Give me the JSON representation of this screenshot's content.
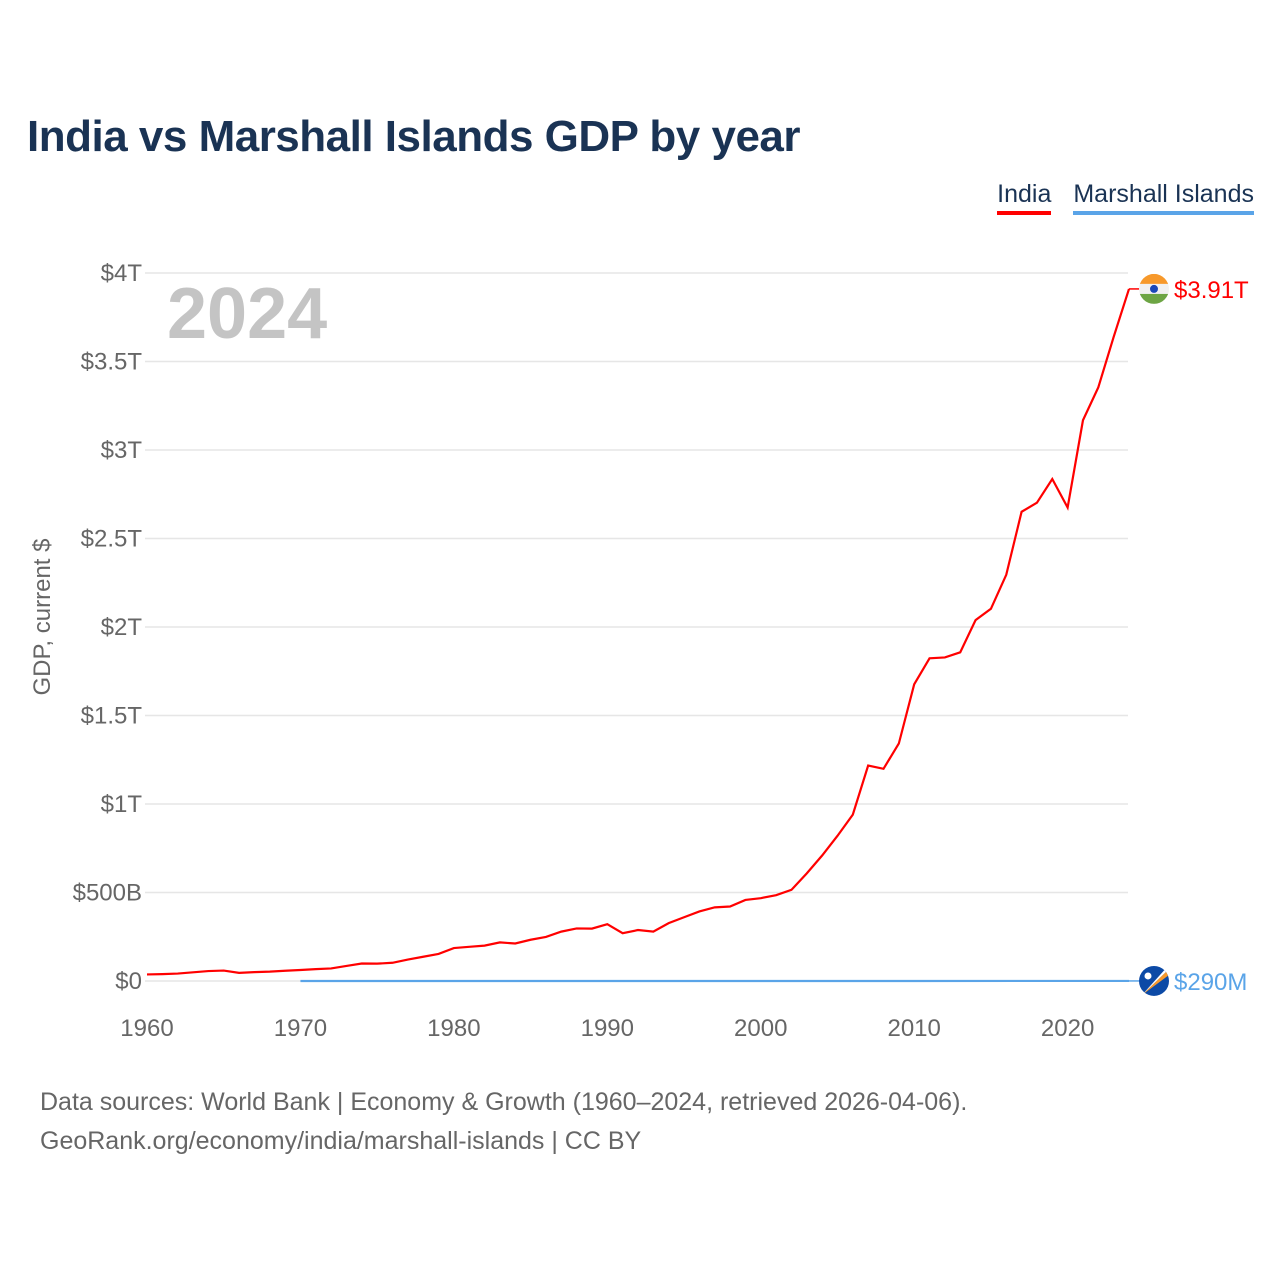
{
  "chart_data": {
    "type": "line",
    "title": "India vs Marshall Islands GDP by year",
    "ylabel": "GDP, current $",
    "xlabel": "",
    "year_label": "2024",
    "xlim": [
      1960,
      2024
    ],
    "ylim": [
      0,
      4000000000000
    ],
    "x_ticks": [
      "1960",
      "1970",
      "1980",
      "1990",
      "2000",
      "2010",
      "2020"
    ],
    "y_ticks": [
      {
        "value": 0,
        "label": "$0"
      },
      {
        "value": 500000000000,
        "label": "$500B"
      },
      {
        "value": 1000000000000,
        "label": "$1T"
      },
      {
        "value": 1500000000000,
        "label": "$1.5T"
      },
      {
        "value": 2000000000000,
        "label": "$2T"
      },
      {
        "value": 2500000000000,
        "label": "$2.5T"
      },
      {
        "value": 3000000000000,
        "label": "$3T"
      },
      {
        "value": 3500000000000,
        "label": "$3.5T"
      },
      {
        "value": 4000000000000,
        "label": "$4T"
      }
    ],
    "grid": true,
    "legend_position": "top-right",
    "series": [
      {
        "name": "India",
        "color": "#ff0000",
        "end_label": "$3.91T",
        "flag": "india-flag",
        "unit": "billions USD",
        "start_year": 1960,
        "values": [
          37,
          39,
          42,
          49,
          56,
          59,
          46,
          50,
          53,
          58,
          62,
          67,
          71,
          85,
          99,
          98,
          103,
          121,
          137,
          153,
          186,
          193,
          200,
          218,
          212,
          233,
          249,
          279,
          297,
          296,
          321,
          270,
          288,
          279,
          327,
          360,
          393,
          416,
          421,
          458,
          468,
          485,
          515,
          608,
          709,
          820,
          940,
          1217,
          1199,
          1342,
          1676,
          1823,
          1828,
          1857,
          2039,
          2103,
          2295,
          2651,
          2702,
          2836,
          2675,
          3168,
          3354,
          3639,
          3910
        ]
      },
      {
        "name": "Marshall Islands",
        "color": "#5aa4e8",
        "end_label": "$290M",
        "flag": "marshall-islands-flag",
        "unit": "millions USD",
        "points": [
          [
            1970,
            30
          ],
          [
            1981,
            31
          ],
          [
            1990,
            80
          ],
          [
            2000,
            110
          ],
          [
            2010,
            165
          ],
          [
            2020,
            245
          ],
          [
            2024,
            290
          ]
        ]
      }
    ]
  },
  "footer": {
    "line1": "Data sources: World Bank | Economy & Growth (1960–2024, retrieved 2026-04-06).",
    "line2": "GeoRank.org/economy/india/marshall-islands | CC BY"
  }
}
